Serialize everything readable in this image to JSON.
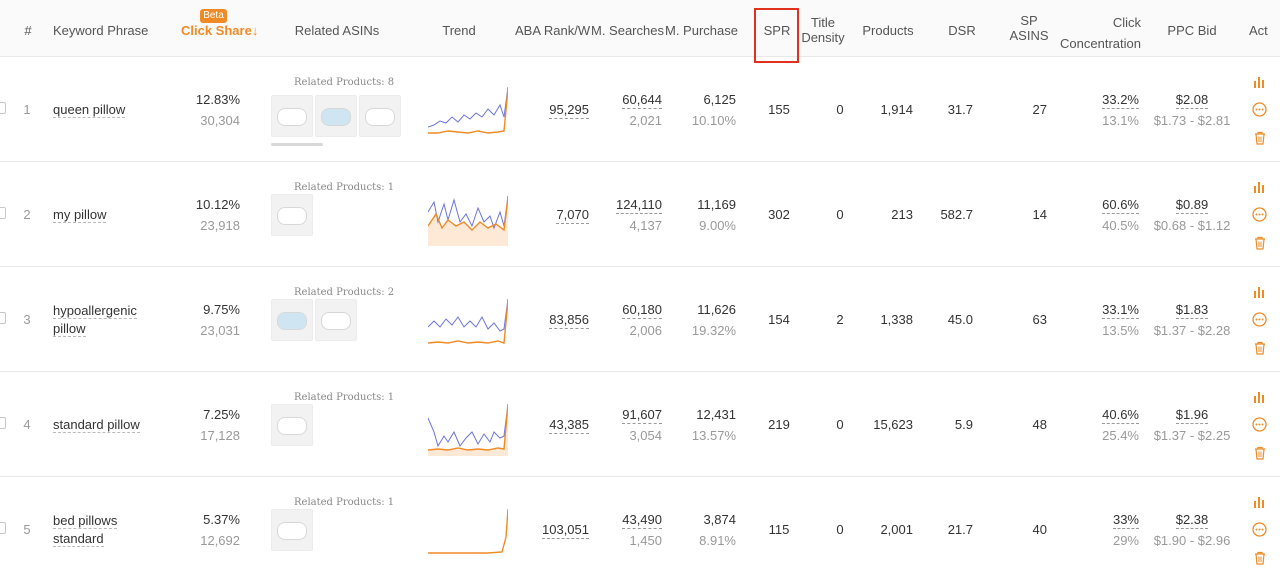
{
  "header": {
    "num": "#",
    "keyword": "Keyword Phrase",
    "beta": "Beta",
    "click_share": "Click Share",
    "click_share_arrow": "↓",
    "related": "Related ASINs",
    "trend": "Trend",
    "aba": "ABA Rank/W",
    "searches": "M. Searches",
    "purchase": "M. Purchase",
    "spr": "SPR",
    "title_density_1": "Title",
    "title_density_2": "Density",
    "products": "Products",
    "dsr": "DSR",
    "sp_asins_1": "SP",
    "sp_asins_2": "ASINS",
    "click_conc_1": "Click",
    "click_conc_2": "Concentration",
    "ppc": "PPC Bid",
    "act": "Act"
  },
  "colors": {
    "accent": "#f08a24",
    "highlight": "#e0301e",
    "trend_blue": "#6b74e0",
    "trend_orange": "#f08a24"
  },
  "rows": [
    {
      "idx": "1",
      "keyword": "queen pillow",
      "keyword2": "",
      "share": "12.83%",
      "share_sub": "30,304",
      "related_label": "Related Products: 8",
      "aba": "95,295",
      "searches": "60,644",
      "searches_sub": "2,021",
      "purchase": "6,125",
      "purchase_sub": "10.10%",
      "spr": "155",
      "density": "0",
      "products": "1,914",
      "dsr": "31.7",
      "sp": "27",
      "conc": "33.2%",
      "conc_sub": "13.1%",
      "ppc": "$2.08",
      "ppc_range": "$1.73 - $2.81"
    },
    {
      "idx": "2",
      "keyword": "my pillow",
      "keyword2": "",
      "share": "10.12%",
      "share_sub": "23,918",
      "related_label": "Related Products: 1",
      "aba": "7,070",
      "searches": "124,110",
      "searches_sub": "4,137",
      "purchase": "11,169",
      "purchase_sub": "9.00%",
      "spr": "302",
      "density": "0",
      "products": "213",
      "dsr": "582.7",
      "sp": "14",
      "conc": "60.6%",
      "conc_sub": "40.5%",
      "ppc": "$0.89",
      "ppc_range": "$0.68 - $1.12"
    },
    {
      "idx": "3",
      "keyword": "hypoallergenic",
      "keyword2": "pillow",
      "share": "9.75%",
      "share_sub": "23,031",
      "related_label": "Related Products: 2",
      "aba": "83,856",
      "searches": "60,180",
      "searches_sub": "2,006",
      "purchase": "11,626",
      "purchase_sub": "19.32%",
      "spr": "154",
      "density": "2",
      "products": "1,338",
      "dsr": "45.0",
      "sp": "63",
      "conc": "33.1%",
      "conc_sub": "13.5%",
      "ppc": "$1.83",
      "ppc_range": "$1.37 - $2.28"
    },
    {
      "idx": "4",
      "keyword": "standard pillow",
      "keyword2": "",
      "share": "7.25%",
      "share_sub": "17,128",
      "related_label": "Related Products: 1",
      "aba": "43,385",
      "searches": "91,607",
      "searches_sub": "3,054",
      "purchase": "12,431",
      "purchase_sub": "13.57%",
      "spr": "219",
      "density": "0",
      "products": "15,623",
      "dsr": "5.9",
      "sp": "48",
      "conc": "40.6%",
      "conc_sub": "25.4%",
      "ppc": "$1.96",
      "ppc_range": "$1.37 - $2.25"
    },
    {
      "idx": "5",
      "keyword": "bed pillows",
      "keyword2": "standard",
      "share": "5.37%",
      "share_sub": "12,692",
      "related_label": "Related Products: 1",
      "aba": "103,051",
      "searches": "43,490",
      "searches_sub": "1,450",
      "purchase": "3,874",
      "purchase_sub": "8.91%",
      "spr": "115",
      "density": "0",
      "products": "2,001",
      "dsr": "21.7",
      "sp": "40",
      "conc": "33%",
      "conc_sub": "29%",
      "ppc": "$2.38",
      "ppc_range": "$1.90 - $2.96"
    }
  ],
  "icons": {
    "chart": "bar-chart-icon",
    "more": "more-circle-icon",
    "delete": "trash-icon"
  }
}
